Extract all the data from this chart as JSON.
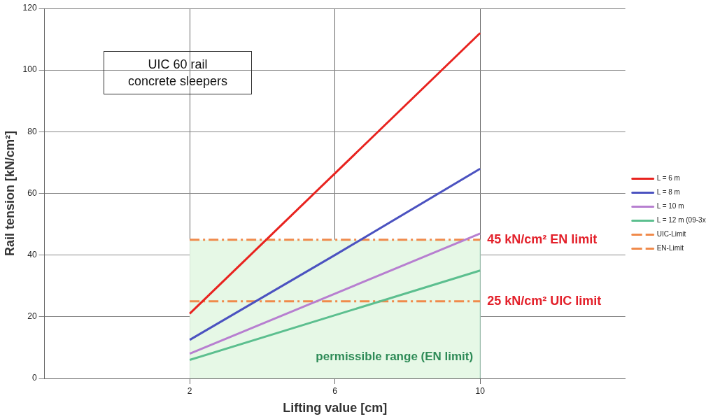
{
  "chart_data": {
    "type": "line",
    "title": "UIC 60 rail concrete sleepers",
    "xlabel": "Lifting value [cm]",
    "ylabel": "Rail tension [kN/cm²]",
    "xlim": [
      -2,
      14
    ],
    "xticks": [
      2,
      6,
      10
    ],
    "ylim": [
      0,
      120
    ],
    "yticks": [
      0,
      20,
      40,
      60,
      80,
      100,
      120
    ],
    "grid": true,
    "legend": "right",
    "marker": "none",
    "series": [
      {
        "name": "L = 6 m",
        "color": "#e8231f",
        "x": [
          2,
          6,
          10
        ],
        "values": [
          21,
          66.5,
          112
        ]
      },
      {
        "name": "L = 8 m",
        "color": "#4b52c0",
        "x": [
          2,
          6,
          10
        ],
        "values": [
          12.5,
          40,
          68
        ]
      },
      {
        "name": "L = 10 m",
        "color": "#b77fd0",
        "x": [
          2,
          6,
          10
        ],
        "values": [
          8,
          27.5,
          47
        ]
      },
      {
        "name": "L = 12 m (09-3x",
        "color": "#5cbf8f",
        "x": [
          2,
          6,
          10
        ],
        "values": [
          6,
          20.5,
          35
        ]
      },
      {
        "name": "UIC-Limit",
        "color": "#f08a4b",
        "x": [
          2,
          10
        ],
        "values": [
          25,
          25
        ],
        "line_style": "dashed"
      },
      {
        "name": "EN-Limit",
        "color": "#f08a4b",
        "x": [
          2,
          10
        ],
        "values": [
          45,
          45
        ],
        "line_style": "dashed"
      }
    ],
    "bands": [
      {
        "axis": "x",
        "from": 2,
        "to": 10,
        "label": "permissible range (EN limit)",
        "color": "#e6f8e6"
      }
    ],
    "annotations": [
      {
        "text": "45 kN/cm² EN limit",
        "x": 10,
        "y": 45
      },
      {
        "text": "25 kN/cm² UIC limit",
        "x": 10,
        "y": 25
      }
    ]
  }
}
